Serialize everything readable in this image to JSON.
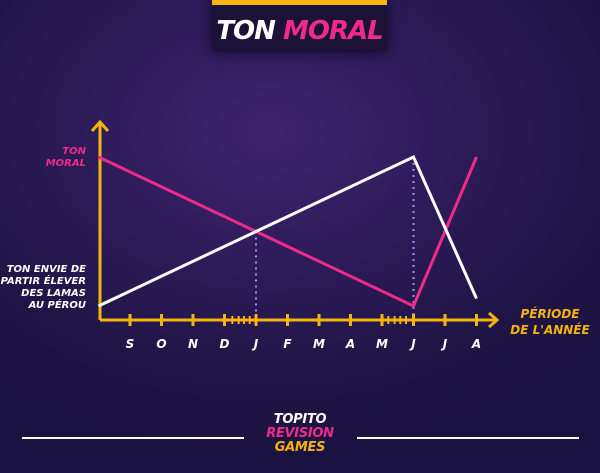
{
  "title": {
    "part1": "TON",
    "part2": "MORAL"
  },
  "chart_data": {
    "type": "line",
    "x_categories": [
      "S",
      "O",
      "N",
      "D",
      "J",
      "F",
      "M",
      "A",
      "M",
      "J",
      "J",
      "A"
    ],
    "x_positions": [
      0,
      1,
      2,
      3,
      4,
      5,
      6,
      7,
      8,
      9,
      10,
      11
    ],
    "y_range": [
      0,
      1
    ],
    "xlabel": "PÉRIODE\nDE L'ANNÉE",
    "ylabel_top": "TON\nMORAL",
    "ylabel_bottom": "TON ENVIE DE\nPARTIR ÉLEVER\nDES LAMAS\nAU PÉROU",
    "series": [
      {
        "label_ref": "ylabel_top",
        "color": "#ef2b8a",
        "points": [
          [
            -1,
            1.0
          ],
          [
            9,
            0.0
          ],
          [
            11,
            1.0
          ]
        ]
      },
      {
        "label_ref": "ylabel_bottom",
        "color": "#ffffff",
        "points": [
          [
            -1,
            0.0
          ],
          [
            9,
            1.0
          ],
          [
            11,
            0.05
          ]
        ]
      }
    ],
    "dotted_guides": [
      {
        "x": 4,
        "y": 0.5
      },
      {
        "x": 9,
        "y": 1.0
      }
    ],
    "axis_color": "#f5b40f",
    "grid": false
  },
  "footer": {
    "logo_line1": "TOPITO",
    "logo_line2": "REVISION",
    "logo_line3": "GAMES"
  }
}
